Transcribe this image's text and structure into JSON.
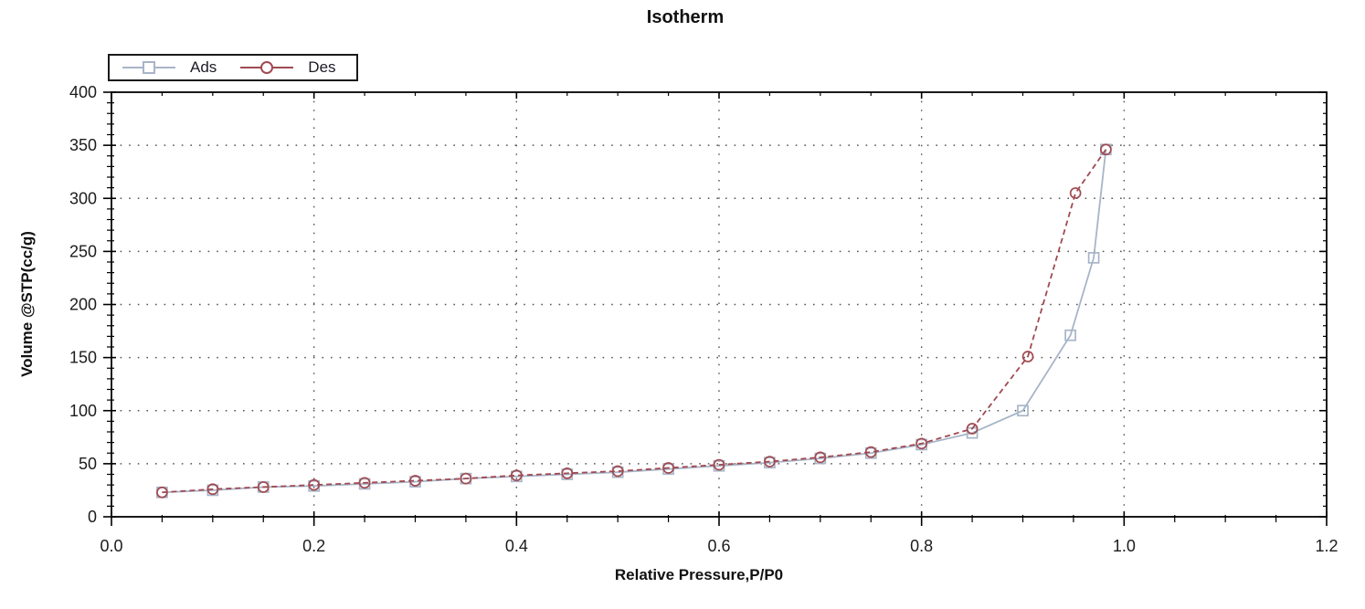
{
  "chart_data": {
    "type": "line",
    "title": "Isotherm",
    "xlabel": "Relative Pressure,P/P0",
    "ylabel": "Volume @STP(cc/g)",
    "xlim": [
      0,
      1.2
    ],
    "ylim": [
      0,
      400
    ],
    "xticks": [
      0.0,
      0.2,
      0.4,
      0.6,
      0.8,
      1.0,
      1.2
    ],
    "xtick_labels": [
      "0.0",
      "0.2",
      "0.4",
      "0.6",
      "0.8",
      "1.0",
      "1.2"
    ],
    "yticks": [
      0,
      50,
      100,
      150,
      200,
      250,
      300,
      350,
      400
    ],
    "ytick_labels": [
      "0",
      "50",
      "100",
      "150",
      "200",
      "250",
      "300",
      "350",
      "400"
    ],
    "x_minor_step": 0.05,
    "y_minor_step": 10,
    "grid": "dotted at major ticks",
    "legend": {
      "position": "top-left",
      "entries": [
        {
          "label": "Ads",
          "marker": "square",
          "color": "#a7b5c8"
        },
        {
          "label": "Des",
          "marker": "circle",
          "color": "#a04a52"
        }
      ]
    },
    "series": [
      {
        "name": "Ads",
        "color": "#a7b5c8",
        "marker": "square",
        "line_style": "solid",
        "points": [
          [
            0.05,
            23
          ],
          [
            0.1,
            25
          ],
          [
            0.15,
            28
          ],
          [
            0.2,
            29
          ],
          [
            0.25,
            31
          ],
          [
            0.3,
            33
          ],
          [
            0.35,
            36
          ],
          [
            0.4,
            38
          ],
          [
            0.45,
            40
          ],
          [
            0.5,
            42
          ],
          [
            0.55,
            45
          ],
          [
            0.6,
            48
          ],
          [
            0.65,
            51
          ],
          [
            0.7,
            55
          ],
          [
            0.75,
            60
          ],
          [
            0.8,
            68
          ],
          [
            0.85,
            79
          ],
          [
            0.9,
            100
          ],
          [
            0.947,
            171
          ],
          [
            0.97,
            244
          ],
          [
            0.982,
            346
          ]
        ]
      },
      {
        "name": "Des",
        "color": "#a04a52",
        "marker": "circle",
        "line_style": "dashed",
        "points": [
          [
            0.05,
            23
          ],
          [
            0.1,
            26
          ],
          [
            0.15,
            28
          ],
          [
            0.2,
            30
          ],
          [
            0.25,
            32
          ],
          [
            0.3,
            34
          ],
          [
            0.35,
            36
          ],
          [
            0.4,
            39
          ],
          [
            0.45,
            41
          ],
          [
            0.5,
            43
          ],
          [
            0.55,
            46
          ],
          [
            0.6,
            49
          ],
          [
            0.65,
            52
          ],
          [
            0.7,
            56
          ],
          [
            0.75,
            61
          ],
          [
            0.8,
            69
          ],
          [
            0.85,
            83
          ],
          [
            0.905,
            151
          ],
          [
            0.952,
            305
          ],
          [
            0.982,
            346
          ]
        ]
      }
    ],
    "colors": {
      "frame": "#000000",
      "grid": "#555555",
      "tick": "#000000",
      "text": "#1c1c1c",
      "background": "#ffffff"
    }
  }
}
